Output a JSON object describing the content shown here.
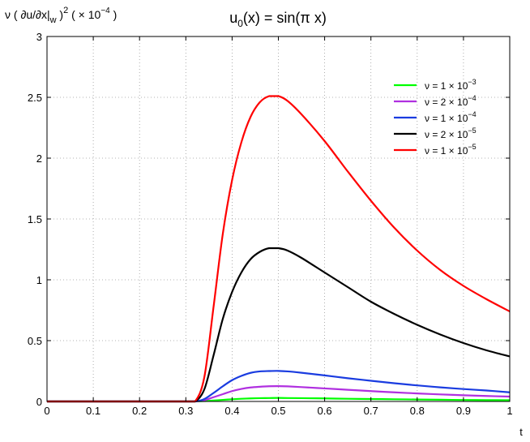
{
  "chart_data": {
    "type": "line",
    "title": {
      "main": "u",
      "sub": "0",
      "rest": "(x) = sin(π x)"
    },
    "ylabel": {
      "a": "ν ( ∂u/∂x|",
      "sub": "w",
      "b": " )",
      "sup": "2",
      "c": " ( × 10",
      "sup2": "−4",
      "d": " )"
    },
    "xlabel": "t",
    "xlim": [
      0,
      1
    ],
    "ylim": [
      0,
      3
    ],
    "xticks": [
      "0",
      "0.1",
      "0.2",
      "0.3",
      "0.4",
      "0.5",
      "0.6",
      "0.7",
      "0.8",
      "0.9",
      "1"
    ],
    "yticks": [
      "0",
      "0.5",
      "1",
      "1.5",
      "2",
      "2.5",
      "3"
    ],
    "grid": true,
    "legend_position": "top-right",
    "x": [
      0,
      0.1,
      0.2,
      0.3,
      0.32,
      0.34,
      0.36,
      0.38,
      0.4,
      0.42,
      0.44,
      0.46,
      0.48,
      0.5,
      0.52,
      0.55,
      0.6,
      0.65,
      0.7,
      0.75,
      0.8,
      0.85,
      0.9,
      0.95,
      1.0
    ],
    "series": [
      {
        "name": "1 × 10⁻³",
        "legend": {
          "base": "ν = 1 × 10",
          "exp": "−3"
        },
        "color": "#00ff00",
        "values": [
          0,
          0,
          0,
          0,
          0,
          0.003,
          0.008,
          0.013,
          0.018,
          0.022,
          0.025,
          0.027,
          0.028,
          0.029,
          0.028,
          0.027,
          0.025,
          0.022,
          0.02,
          0.018,
          0.016,
          0.014,
          0.012,
          0.011,
          0.01
        ]
      },
      {
        "name": "2 × 10⁻⁴",
        "legend": {
          "base": "ν = 2 × 10",
          "exp": "−4"
        },
        "color": "#b030e0",
        "values": [
          0,
          0,
          0,
          0,
          0,
          0.01,
          0.035,
          0.06,
          0.085,
          0.103,
          0.115,
          0.121,
          0.125,
          0.126,
          0.124,
          0.118,
          0.107,
          0.096,
          0.085,
          0.075,
          0.066,
          0.058,
          0.051,
          0.045,
          0.04
        ]
      },
      {
        "name": "1 × 10⁻⁴",
        "legend": {
          "base": "ν = 1 × 10",
          "exp": "−4"
        },
        "color": "#1a3ce0",
        "values": [
          0,
          0,
          0,
          0,
          0,
          0.02,
          0.07,
          0.125,
          0.175,
          0.21,
          0.235,
          0.247,
          0.25,
          0.251,
          0.247,
          0.236,
          0.214,
          0.191,
          0.17,
          0.15,
          0.132,
          0.116,
          0.102,
          0.09,
          0.075
        ]
      },
      {
        "name": "2 × 10⁻⁵",
        "legend": {
          "base": "ν = 2 × 10",
          "exp": "−5"
        },
        "color": "#000000",
        "values": [
          0,
          0,
          0,
          0,
          0,
          0.1,
          0.38,
          0.68,
          0.9,
          1.06,
          1.17,
          1.23,
          1.26,
          1.26,
          1.24,
          1.18,
          1.06,
          0.94,
          0.82,
          0.72,
          0.63,
          0.55,
          0.48,
          0.42,
          0.37
        ]
      },
      {
        "name": "1 × 10⁻⁵",
        "legend": {
          "base": "ν = 1 × 10",
          "exp": "−5"
        },
        "color": "#ff0000",
        "values": [
          0,
          0,
          0,
          0,
          0,
          0.2,
          0.78,
          1.38,
          1.82,
          2.13,
          2.34,
          2.46,
          2.51,
          2.51,
          2.47,
          2.36,
          2.14,
          1.89,
          1.65,
          1.43,
          1.24,
          1.08,
          0.95,
          0.84,
          0.74
        ]
      }
    ]
  }
}
